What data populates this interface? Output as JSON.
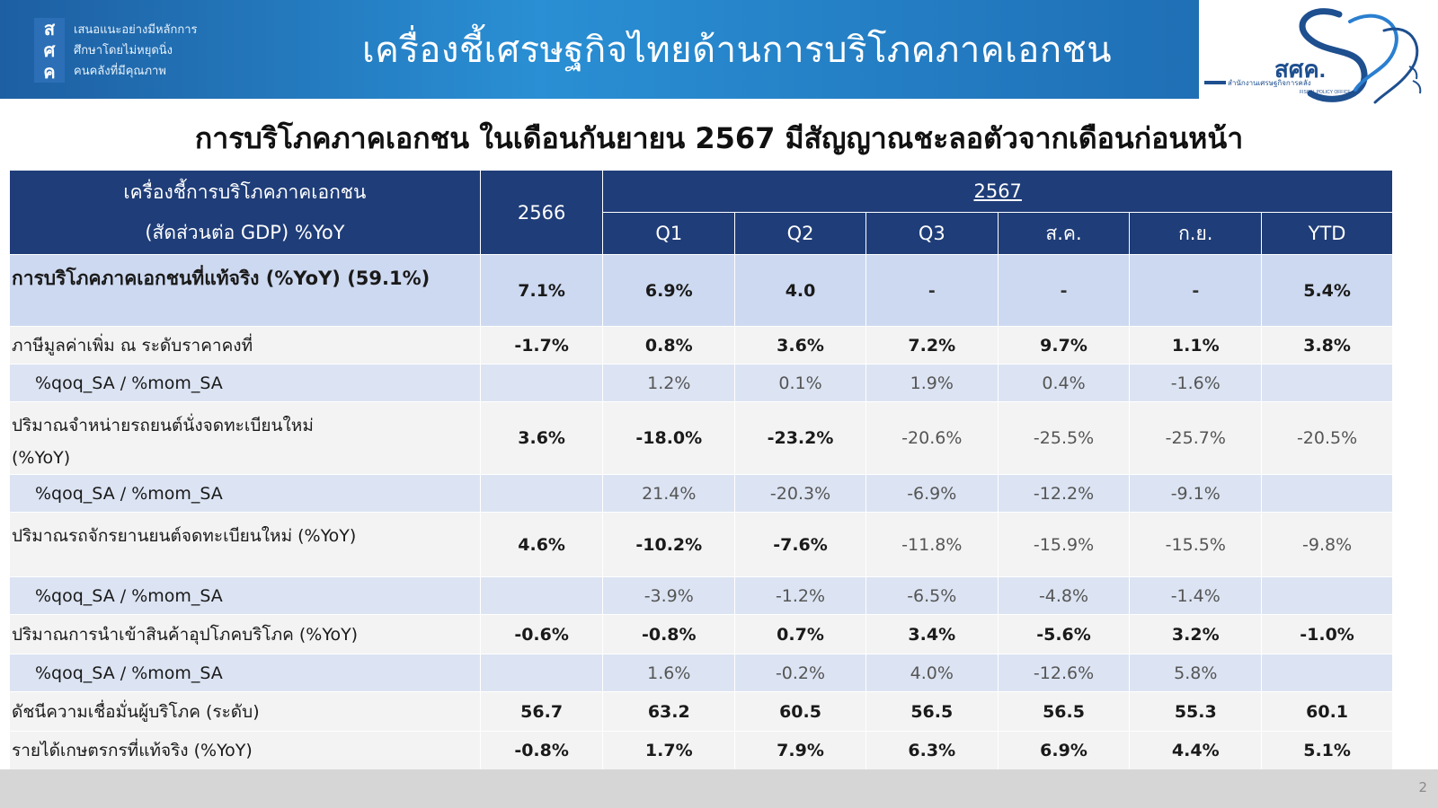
{
  "banner": {
    "logo_letters": [
      "ส",
      "ศ",
      "ค"
    ],
    "motto_lines": [
      "เสนอแนะอย่างมีหลักการ",
      "ศึกษาโดยไม่หยุดนิ่ง",
      "คนคลังที่มีคุณภาพ"
    ],
    "title": "เครื่องชี้เศรษฐกิจไทยด้านการบริโภคภาคเอกชน"
  },
  "fpo_logo": {
    "abbr": "สศค.",
    "tagline": "สำนักงานเศรษฐกิจการคลัง",
    "english": "FISCAL POLICY OFFICE"
  },
  "subtitle": "การบริโภคภาคเอกชน ในเดือนกันยายน 2567 มีสัญญาณชะลอตัวจากเดือนก่อนหน้า",
  "table": {
    "indicator_header": [
      "เครื่องชี้การบริโภคภาคเอกชน",
      "(สัดส่วนต่อ GDP) %YoY"
    ],
    "year_prev": "2566",
    "year_curr": "2567",
    "periods": [
      "Q1",
      "Q2",
      "Q3",
      "ส.ค.",
      "ก.ย.",
      "YTD"
    ],
    "rows": [
      {
        "label": "การบริโภคภาคเอกชนที่แท้จริง (%YoY) (59.1%)",
        "values": [
          "7.1%",
          "6.9%",
          "4.0",
          "-",
          "-",
          "-",
          "5.4%"
        ]
      },
      {
        "label": "ภาษีมูลค่าเพิ่ม ณ ระดับราคาคงที่",
        "values": [
          "-1.7%",
          "0.8%",
          "3.6%",
          "7.2%",
          "9.7%",
          "1.1%",
          "3.8%"
        ]
      },
      {
        "label": "%qoq_SA / %mom_SA",
        "values": [
          "",
          "1.2%",
          "0.1%",
          "1.9%",
          "0.4%",
          "-1.6%",
          ""
        ]
      },
      {
        "label": [
          "ปริมาณจำหน่ายรถยนต์นั่งจดทะเบียนใหม่",
          "(%YoY)"
        ],
        "values": [
          "3.6%",
          "-18.0%",
          "-23.2%",
          "-20.6%",
          "-25.5%",
          "-25.7%",
          "-20.5%"
        ]
      },
      {
        "label": "%qoq_SA / %mom_SA",
        "values": [
          "",
          "21.4%",
          "-20.3%",
          "-6.9%",
          "-12.2%",
          "-9.1%",
          ""
        ]
      },
      {
        "label": "ปริมาณรถจักรยานยนต์จดทะเบียนใหม่ (%YoY)",
        "values": [
          "4.6%",
          "-10.2%",
          "-7.6%",
          "-11.8%",
          "-15.9%",
          "-15.5%",
          "-9.8%"
        ]
      },
      {
        "label": "%qoq_SA / %mom_SA",
        "values": [
          "",
          "-3.9%",
          "-1.2%",
          "-6.5%",
          "-4.8%",
          "-1.4%",
          ""
        ]
      },
      {
        "label": "ปริมาณการนำเข้าสินค้าอุปโภคบริโภค (%YoY)",
        "values": [
          "-0.6%",
          "-0.8%",
          "0.7%",
          "3.4%",
          "-5.6%",
          "3.2%",
          "-1.0%"
        ]
      },
      {
        "label": "%qoq_SA / %mom_SA",
        "values": [
          "",
          "1.6%",
          "-0.2%",
          "4.0%",
          "-12.6%",
          "5.8%",
          ""
        ]
      },
      {
        "label": "ดัชนีความเชื่อมั่นผู้บริโภค (ระดับ)",
        "values": [
          "56.7",
          "63.2",
          "60.5",
          "56.5",
          "56.5",
          "55.3",
          "60.1"
        ]
      },
      {
        "label": "รายได้เกษตรกรที่แท้จริง (%YoY)",
        "values": [
          "-0.8%",
          "1.7%",
          "7.9%",
          "6.3%",
          "6.9%",
          "4.4%",
          "5.1%"
        ]
      }
    ]
  },
  "page_number": "2",
  "colors": {
    "header_navy": "#1f3d78",
    "banner_blue": "#2a8fd4",
    "row_blue": "#dce4f3",
    "row_main": "#cdd9f0",
    "row_light": "#f3f3f3"
  }
}
